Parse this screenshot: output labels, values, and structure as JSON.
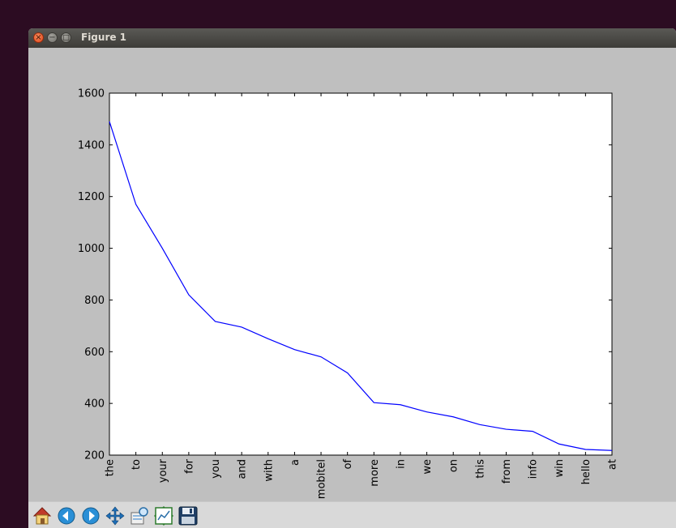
{
  "window": {
    "title": "Figure 1"
  },
  "toolbar": {
    "buttons": [
      {
        "name": "home-button",
        "icon": "home-icon"
      },
      {
        "name": "back-button",
        "icon": "arrow-left-icon"
      },
      {
        "name": "forward-button",
        "icon": "arrow-right-icon"
      },
      {
        "name": "pan-button",
        "icon": "move-arrows-icon"
      },
      {
        "name": "zoom-button",
        "icon": "zoom-rect-icon"
      },
      {
        "name": "subplots-button",
        "icon": "subplots-icon"
      },
      {
        "name": "save-button",
        "icon": "floppy-disk-icon"
      }
    ]
  },
  "chart_data": {
    "type": "line",
    "title": "",
    "xlabel": "",
    "ylabel": "",
    "categories": [
      "the",
      "to",
      "your",
      "for",
      "you",
      "and",
      "with",
      "a",
      "mobitel",
      "of",
      "more",
      "in",
      "we",
      "on",
      "this",
      "from",
      "info",
      "win",
      "hello",
      "at"
    ],
    "series": [
      {
        "values": [
          1490,
          1170,
          1000,
          820,
          717,
          695,
          650,
          608,
          580,
          518,
          403,
          395,
          367,
          348,
          318,
          300,
          292,
          243,
          222,
          218
        ],
        "color": "#0000ff"
      }
    ],
    "ylim": [
      200,
      1600
    ],
    "yticks": [
      200,
      400,
      600,
      800,
      1000,
      1200,
      1400,
      1600
    ],
    "grid": false
  }
}
